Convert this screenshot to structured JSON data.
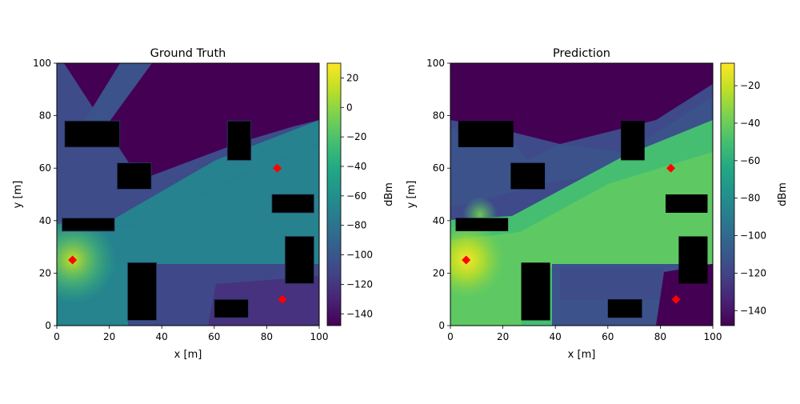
{
  "chart_data": [
    {
      "type": "heatmap",
      "title": "Ground Truth",
      "xlabel": "x [m]",
      "ylabel": "y [m]",
      "xlim": [
        0,
        100
      ],
      "ylim": [
        0,
        100
      ],
      "xticks": [
        0,
        20,
        40,
        60,
        80,
        100
      ],
      "yticks": [
        0,
        20,
        40,
        60,
        80,
        100
      ],
      "colorbar": {
        "label": "dBm",
        "min": -148,
        "max": 30,
        "ticks": [
          20,
          0,
          -20,
          -40,
          -60,
          -80,
          -100,
          -120,
          -140
        ],
        "colormap": "viridis"
      },
      "buildings": [
        {
          "x0": 3,
          "x1": 24,
          "y0": 68,
          "y1": 78
        },
        {
          "x0": 23,
          "x1": 36,
          "y0": 52,
          "y1": 62
        },
        {
          "x0": 65,
          "x1": 74,
          "y0": 63,
          "y1": 78
        },
        {
          "x0": 82,
          "x1": 98,
          "y0": 43,
          "y1": 50
        },
        {
          "x0": 2,
          "x1": 22,
          "y0": 36,
          "y1": 41
        },
        {
          "x0": 87,
          "x1": 98,
          "y0": 16,
          "y1": 34
        },
        {
          "x0": 27,
          "x1": 38,
          "y0": 2,
          "y1": 24
        },
        {
          "x0": 60,
          "x1": 73,
          "y0": 3,
          "y1": 10
        }
      ],
      "transmitters": [
        {
          "x": 6,
          "y": 25
        },
        {
          "x": 84,
          "y": 60
        },
        {
          "x": 86,
          "y": 10
        }
      ]
    },
    {
      "type": "heatmap",
      "title": "Prediction",
      "xlabel": "x [m]",
      "ylabel": "y [m]",
      "xlim": [
        0,
        100
      ],
      "ylim": [
        0,
        100
      ],
      "xticks": [
        0,
        20,
        40,
        60,
        80,
        100
      ],
      "yticks": [
        0,
        20,
        40,
        60,
        80,
        100
      ],
      "colorbar": {
        "label": "dBm",
        "min": -148,
        "max": -8,
        "ticks": [
          -20,
          -40,
          -60,
          -80,
          -100,
          -120,
          -140
        ],
        "colormap": "viridis"
      },
      "buildings": [
        {
          "x0": 3,
          "x1": 24,
          "y0": 68,
          "y1": 78
        },
        {
          "x0": 23,
          "x1": 36,
          "y0": 52,
          "y1": 62
        },
        {
          "x0": 65,
          "x1": 74,
          "y0": 63,
          "y1": 78
        },
        {
          "x0": 82,
          "x1": 98,
          "y0": 43,
          "y1": 50
        },
        {
          "x0": 2,
          "x1": 22,
          "y0": 36,
          "y1": 41
        },
        {
          "x0": 87,
          "x1": 98,
          "y0": 16,
          "y1": 34
        },
        {
          "x0": 27,
          "x1": 38,
          "y0": 2,
          "y1": 24
        },
        {
          "x0": 60,
          "x1": 73,
          "y0": 3,
          "y1": 10
        }
      ],
      "transmitters": [
        {
          "x": 6,
          "y": 25
        },
        {
          "x": 84,
          "y": 60
        },
        {
          "x": 86,
          "y": 10
        }
      ]
    }
  ]
}
